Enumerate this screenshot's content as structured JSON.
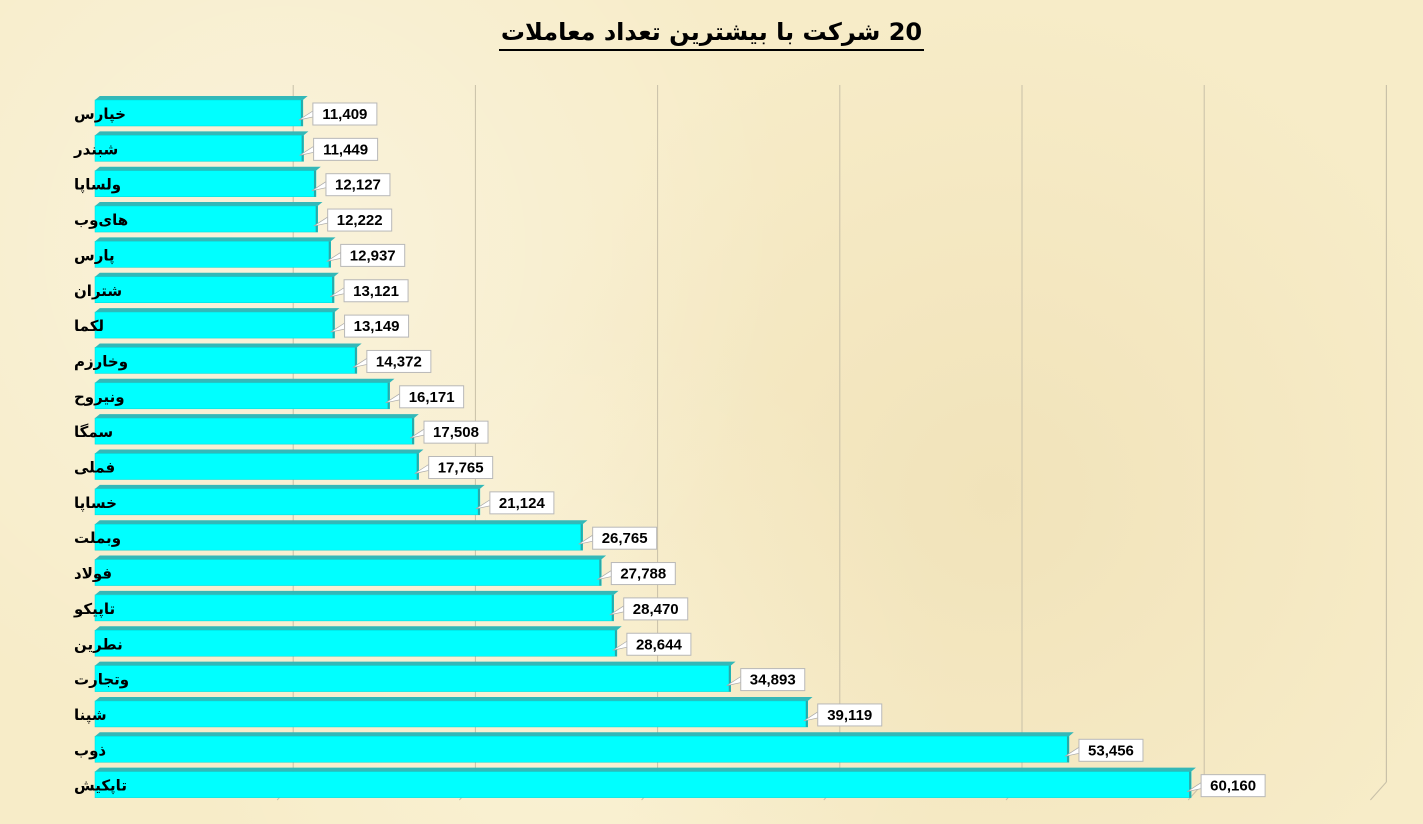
{
  "chart_data": {
    "type": "bar",
    "orientation": "horizontal",
    "title": "20 شرکت با بیشترین تعداد معاملات",
    "xlabel": "",
    "ylabel": "",
    "xlim": [
      0,
      70000
    ],
    "grid": true,
    "categories": [
      "خپارس",
      "شبندر",
      "ولساپا",
      "های‌وب",
      "پارس",
      "شتران",
      "لکما",
      "وخارزم",
      "ونیروح",
      "سمگا",
      "فملی",
      "خساپا",
      "وبملت",
      "فولاد",
      "تاپیکو",
      "نطرین",
      "وتجارت",
      "شپنا",
      "ذوب",
      "تاپکیش"
    ],
    "values": [
      11409,
      11449,
      12127,
      12222,
      12937,
      13121,
      13149,
      14372,
      16171,
      17508,
      17765,
      21124,
      26765,
      27788,
      28470,
      28644,
      34893,
      39119,
      53456,
      60160
    ],
    "value_labels": [
      "11,409",
      "11,449",
      "12,127",
      "12,222",
      "12,937",
      "13,121",
      "13,149",
      "14,372",
      "16,171",
      "17,508",
      "17,765",
      "21,124",
      "26,765",
      "27,788",
      "28,470",
      "28,644",
      "34,893",
      "39,119",
      "53,456",
      "60,160"
    ],
    "colors": {
      "bar": "#00ffff",
      "bar_top": "#33b8b8",
      "grid": "#c8c0a8"
    }
  }
}
